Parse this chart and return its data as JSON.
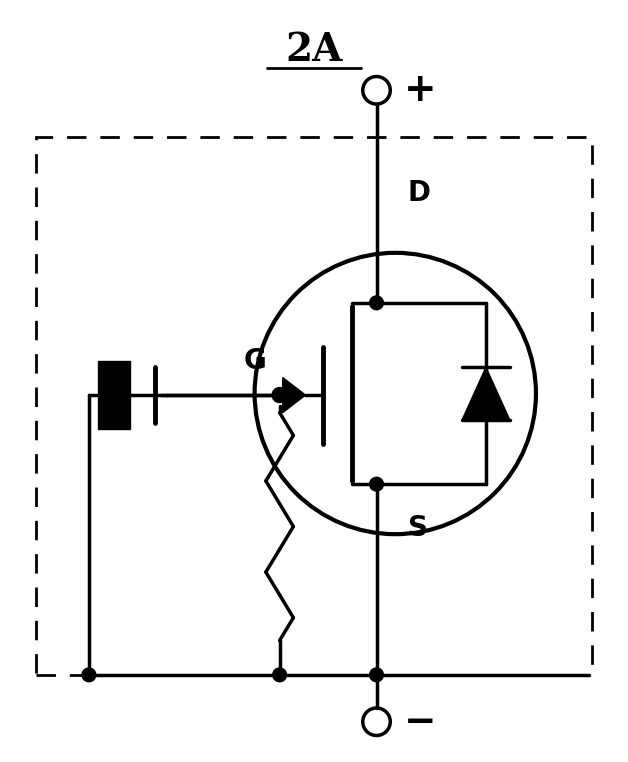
{
  "title": "2A",
  "title_fontsize": 28,
  "bg_color": "#ffffff",
  "line_color": "#000000",
  "line_width": 2.5,
  "fig_width": 6.28,
  "fig_height": 7.62,
  "dpi": 100,
  "xlim": [
    0,
    10
  ],
  "ylim": [
    0,
    12
  ]
}
